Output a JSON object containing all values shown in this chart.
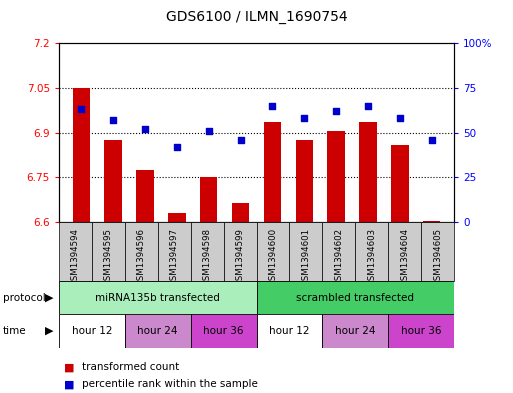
{
  "title": "GDS6100 / ILMN_1690754",
  "samples": [
    "GSM1394594",
    "GSM1394595",
    "GSM1394596",
    "GSM1394597",
    "GSM1394598",
    "GSM1394599",
    "GSM1394600",
    "GSM1394601",
    "GSM1394602",
    "GSM1394603",
    "GSM1394604",
    "GSM1394605"
  ],
  "red_values": [
    7.05,
    6.875,
    6.775,
    6.63,
    6.75,
    6.665,
    6.935,
    6.875,
    6.905,
    6.935,
    6.86,
    6.605
  ],
  "blue_values": [
    63,
    57,
    52,
    42,
    51,
    46,
    65,
    58,
    62,
    65,
    58,
    46
  ],
  "ylim_left": [
    6.6,
    7.2
  ],
  "ylim_right": [
    0,
    100
  ],
  "yticks_left": [
    6.6,
    6.75,
    6.9,
    7.05,
    7.2
  ],
  "yticks_right": [
    0,
    25,
    50,
    75,
    100
  ],
  "ytick_labels_left": [
    "6.6",
    "6.75",
    "6.9",
    "7.05",
    "7.2"
  ],
  "ytick_labels_right": [
    "0",
    "25",
    "50",
    "75",
    "100%"
  ],
  "hlines": [
    6.75,
    6.9,
    7.05
  ],
  "bar_color": "#cc0000",
  "bar_bottom": 6.6,
  "dot_color": "#0000cc",
  "protocol_groups": [
    {
      "label": "miRNA135b transfected",
      "start": 0,
      "end": 6,
      "color": "#aaeebb"
    },
    {
      "label": "scrambled transfected",
      "start": 6,
      "end": 12,
      "color": "#44cc66"
    }
  ],
  "time_groups": [
    {
      "label": "hour 12",
      "start": 0,
      "end": 2,
      "color": "#ffffff"
    },
    {
      "label": "hour 24",
      "start": 2,
      "end": 4,
      "color": "#cc88cc"
    },
    {
      "label": "hour 36",
      "start": 4,
      "end": 6,
      "color": "#cc44cc"
    },
    {
      "label": "hour 12",
      "start": 6,
      "end": 8,
      "color": "#ffffff"
    },
    {
      "label": "hour 24",
      "start": 8,
      "end": 10,
      "color": "#cc88cc"
    },
    {
      "label": "hour 36",
      "start": 10,
      "end": 12,
      "color": "#cc44cc"
    }
  ],
  "legend_red": "transformed count",
  "legend_blue": "percentile rank within the sample",
  "protocol_label": "protocol",
  "time_label": "time",
  "sample_bg_color": "#cccccc",
  "plot_bg_color": "#ffffff"
}
